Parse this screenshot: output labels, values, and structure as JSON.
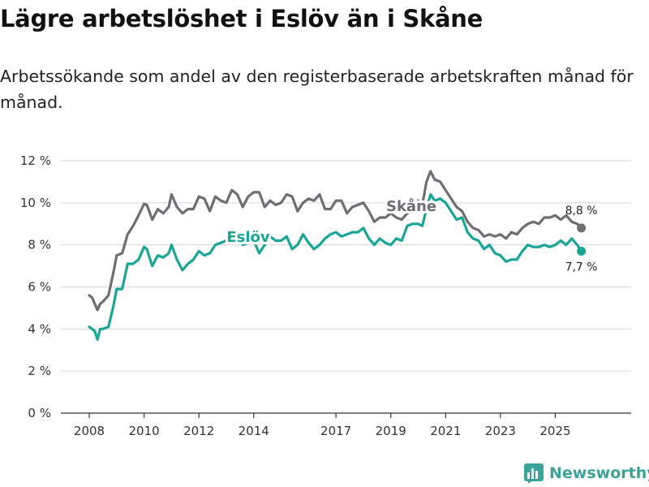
{
  "title": "Lägre arbetslöshet i Eslöv än i Skåne",
  "subtitle": "Arbetssökande som andel av den registerbaserade arbetskraften månad för månad.",
  "brand": "Newsworthy",
  "colors": {
    "eslov": "#1aa696",
    "skane": "#6f6f72",
    "grid": "#d6d6d6",
    "axis": "#333333",
    "brand": "#3aa39a"
  },
  "chart_data": {
    "type": "line",
    "title": "Lägre arbetslöshet i Eslöv än i Skåne",
    "xlabel": "",
    "ylabel": "",
    "xlim": [
      2008.0,
      2026.85
    ],
    "ylim": [
      0,
      12
    ],
    "y_ticks": [
      0,
      2,
      4,
      6,
      8,
      10,
      12
    ],
    "y_tick_labels": [
      "0 %",
      "2 %",
      "4 %",
      "6 %",
      "8 %",
      "10 %",
      "12 %"
    ],
    "x_ticks": [
      2008,
      2010,
      2012,
      2014,
      2017,
      2019,
      2021,
      2023,
      2025
    ],
    "x_tick_labels": [
      "2008",
      "2010",
      "2012",
      "2014",
      "2017",
      "2019",
      "2021",
      "2023",
      "2025"
    ],
    "grid": true,
    "series": [
      {
        "name": "Skåne",
        "label": "Skåne",
        "end_label": "8,8 %",
        "x": [
          2008.0,
          2008.1,
          2008.2,
          2008.3,
          2008.4,
          2008.5,
          2008.7,
          2008.9,
          2009.0,
          2009.2,
          2009.4,
          2009.6,
          2009.8,
          2010.0,
          2010.1,
          2010.3,
          2010.5,
          2010.7,
          2010.9,
          2011.0,
          2011.2,
          2011.4,
          2011.6,
          2011.8,
          2012.0,
          2012.2,
          2012.4,
          2012.6,
          2012.8,
          2013.0,
          2013.2,
          2013.4,
          2013.6,
          2013.8,
          2014.0,
          2014.2,
          2014.4,
          2014.6,
          2014.8,
          2015.0,
          2015.2,
          2015.4,
          2015.6,
          2015.8,
          2016.0,
          2016.2,
          2016.4,
          2016.6,
          2016.8,
          2017.0,
          2017.2,
          2017.4,
          2017.6,
          2017.8,
          2018.0,
          2018.2,
          2018.4,
          2018.6,
          2018.8,
          2019.0,
          2019.2,
          2019.4,
          2019.6,
          2019.8,
          2020.0,
          2020.15,
          2020.3,
          2020.45,
          2020.6,
          2020.8,
          2021.0,
          2021.2,
          2021.4,
          2021.6,
          2021.8,
          2022.0,
          2022.2,
          2022.4,
          2022.6,
          2022.8,
          2023.0,
          2023.2,
          2023.4,
          2023.6,
          2023.8,
          2024.0,
          2024.2,
          2024.4,
          2024.6,
          2024.8,
          2025.0,
          2025.2,
          2025.4,
          2025.6,
          2025.8,
          2025.95
        ],
        "values": [
          5.6,
          5.5,
          5.2,
          4.9,
          5.2,
          5.3,
          5.6,
          6.8,
          7.5,
          7.6,
          8.5,
          8.9,
          9.4,
          9.95,
          9.9,
          9.2,
          9.7,
          9.5,
          9.8,
          10.4,
          9.8,
          9.5,
          9.7,
          9.7,
          10.3,
          10.2,
          9.6,
          10.3,
          10.1,
          10.0,
          10.6,
          10.4,
          9.8,
          10.3,
          10.5,
          10.5,
          9.8,
          10.1,
          9.9,
          10.0,
          10.4,
          10.3,
          9.6,
          10.0,
          10.2,
          10.1,
          10.4,
          9.7,
          9.7,
          10.1,
          10.1,
          9.5,
          9.8,
          9.9,
          10.0,
          9.6,
          9.1,
          9.3,
          9.3,
          9.5,
          9.3,
          9.2,
          9.5,
          9.6,
          10.1,
          9.9,
          11.0,
          11.5,
          11.1,
          11.0,
          10.6,
          10.2,
          9.8,
          9.6,
          9.1,
          8.8,
          8.7,
          8.4,
          8.5,
          8.4,
          8.5,
          8.3,
          8.6,
          8.5,
          8.8,
          9.0,
          9.1,
          9.0,
          9.3,
          9.3,
          9.4,
          9.2,
          9.4,
          9.1,
          9.0,
          8.8
        ]
      },
      {
        "name": "Eslöv",
        "label": "Eslöv",
        "end_label": "7,7 %",
        "x": [
          2008.0,
          2008.1,
          2008.2,
          2008.3,
          2008.4,
          2008.5,
          2008.7,
          2008.9,
          2009.0,
          2009.2,
          2009.4,
          2009.6,
          2009.8,
          2010.0,
          2010.1,
          2010.3,
          2010.5,
          2010.7,
          2010.9,
          2011.0,
          2011.2,
          2011.4,
          2011.6,
          2011.8,
          2012.0,
          2012.2,
          2012.4,
          2012.6,
          2012.8,
          2013.0,
          2013.2,
          2013.4,
          2013.6,
          2013.8,
          2014.0,
          2014.2,
          2014.4,
          2014.6,
          2014.8,
          2015.0,
          2015.2,
          2015.4,
          2015.6,
          2015.8,
          2016.0,
          2016.2,
          2016.4,
          2016.6,
          2016.8,
          2017.0,
          2017.2,
          2017.4,
          2017.6,
          2017.8,
          2018.0,
          2018.2,
          2018.4,
          2018.6,
          2018.8,
          2019.0,
          2019.2,
          2019.4,
          2019.6,
          2019.8,
          2020.0,
          2020.15,
          2020.3,
          2020.45,
          2020.6,
          2020.8,
          2021.0,
          2021.2,
          2021.4,
          2021.6,
          2021.8,
          2022.0,
          2022.2,
          2022.4,
          2022.6,
          2022.8,
          2023.0,
          2023.2,
          2023.4,
          2023.6,
          2023.8,
          2024.0,
          2024.2,
          2024.4,
          2024.6,
          2024.8,
          2025.0,
          2025.2,
          2025.4,
          2025.6,
          2025.8,
          2025.95
        ],
        "values": [
          4.1,
          4.0,
          3.9,
          3.5,
          4.0,
          4.0,
          4.1,
          5.2,
          5.9,
          5.9,
          7.1,
          7.1,
          7.3,
          7.9,
          7.8,
          7.0,
          7.5,
          7.4,
          7.6,
          8.0,
          7.3,
          6.8,
          7.1,
          7.3,
          7.7,
          7.5,
          7.6,
          8.0,
          8.1,
          8.2,
          8.4,
          8.3,
          8.0,
          8.1,
          8.2,
          7.6,
          8.0,
          8.4,
          8.2,
          8.2,
          8.4,
          7.8,
          8.0,
          8.5,
          8.1,
          7.8,
          8.0,
          8.3,
          8.5,
          8.6,
          8.4,
          8.5,
          8.6,
          8.6,
          8.8,
          8.3,
          8.0,
          8.3,
          8.1,
          8.0,
          8.3,
          8.2,
          8.9,
          9.0,
          9.0,
          8.9,
          9.7,
          10.4,
          10.1,
          10.2,
          10.0,
          9.6,
          9.2,
          9.3,
          8.6,
          8.3,
          8.2,
          7.8,
          8.0,
          7.6,
          7.5,
          7.2,
          7.3,
          7.3,
          7.7,
          8.0,
          7.9,
          7.9,
          8.0,
          7.9,
          8.0,
          8.2,
          8.0,
          8.3,
          8.0,
          7.7
        ]
      }
    ]
  }
}
